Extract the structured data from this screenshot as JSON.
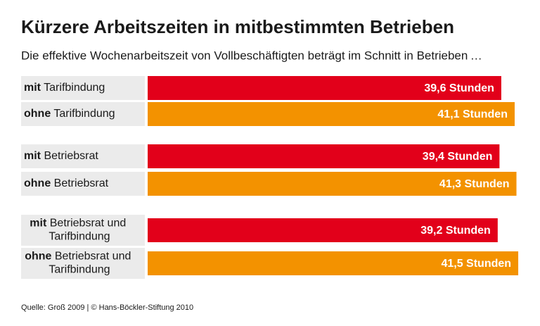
{
  "chart_data": {
    "type": "bar",
    "orientation": "horizontal",
    "title": "Kürzere Arbeitszeiten in mitbestimmten Betrieben",
    "subtitle": "Die effektive Wochenarbeitszeit von Vollbeschäftigten beträgt im Schnitt in Betrieben …",
    "categories": [
      "mit Tarifbindung",
      "ohne Tarifbindung",
      "mit Betriebsrat",
      "ohne Betriebsrat",
      "mit Betriebsrat und Tarifbindung",
      "ohne Betriebsrat und Tarifbindung"
    ],
    "values": [
      39.6,
      41.1,
      39.4,
      41.3,
      39.2,
      41.5
    ],
    "value_labels": [
      "39,6 Stunden",
      "41,1 Stunden",
      "39,4 Stunden",
      "41,3 Stunden",
      "39,2 Stunden",
      "41,5 Stunden"
    ],
    "colors": [
      "#e2001a",
      "#f39200",
      "#e2001a",
      "#f39200",
      "#e2001a",
      "#f39200"
    ],
    "source": "Quelle: Groß 2009 | © Hans-Böckler-Stiftung 2010"
  }
}
